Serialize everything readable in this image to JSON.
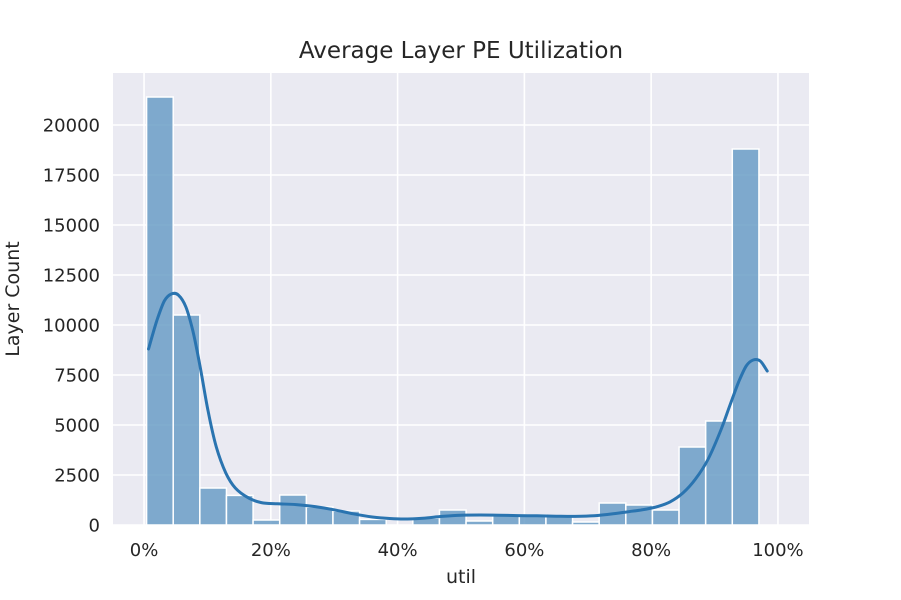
{
  "chart_data": {
    "type": "bar",
    "title": "Average Layer PE Utilization",
    "xlabel": "util",
    "ylabel": "Layer Count",
    "x_tick_values": [
      0,
      20,
      40,
      60,
      80,
      100
    ],
    "x_tick_labels": [
      "0%",
      "20%",
      "40%",
      "60%",
      "80%",
      "100%"
    ],
    "y_tick_values": [
      0,
      2500,
      5000,
      7500,
      10000,
      12500,
      15000,
      17500,
      20000
    ],
    "y_tick_labels": [
      "0",
      "2500",
      "5000",
      "7500",
      "10000",
      "12500",
      "15000",
      "17500",
      "20000"
    ],
    "xlim": [
      -4.9,
      104.9
    ],
    "ylim": [
      0,
      22600
    ],
    "grid": true,
    "bin_width": 4.2,
    "bin_edges_start": 0.4,
    "bins": [
      {
        "x0": 0.4,
        "x1": 4.6,
        "value": 21400
      },
      {
        "x0": 4.6,
        "x1": 8.8,
        "value": 10500
      },
      {
        "x0": 8.8,
        "x1": 13.0,
        "value": 1850
      },
      {
        "x0": 13.0,
        "x1": 17.2,
        "value": 1480
      },
      {
        "x0": 17.2,
        "x1": 21.4,
        "value": 250
      },
      {
        "x0": 21.4,
        "x1": 25.6,
        "value": 1500
      },
      {
        "x0": 25.6,
        "x1": 29.8,
        "value": 900
      },
      {
        "x0": 29.8,
        "x1": 34.0,
        "value": 700
      },
      {
        "x0": 34.0,
        "x1": 38.2,
        "value": 280
      },
      {
        "x0": 38.2,
        "x1": 42.4,
        "value": 0
      },
      {
        "x0": 42.4,
        "x1": 46.6,
        "value": 350
      },
      {
        "x0": 46.6,
        "x1": 50.8,
        "value": 750
      },
      {
        "x0": 50.8,
        "x1": 55.0,
        "value": 200
      },
      {
        "x0": 55.0,
        "x1": 59.2,
        "value": 500
      },
      {
        "x0": 59.2,
        "x1": 63.4,
        "value": 500
      },
      {
        "x0": 63.4,
        "x1": 67.6,
        "value": 450
      },
      {
        "x0": 67.6,
        "x1": 71.8,
        "value": 150
      },
      {
        "x0": 71.8,
        "x1": 76.0,
        "value": 1100
      },
      {
        "x0": 76.0,
        "x1": 80.2,
        "value": 1000
      },
      {
        "x0": 80.2,
        "x1": 84.4,
        "value": 750
      },
      {
        "x0": 84.4,
        "x1": 88.6,
        "value": 3900
      },
      {
        "x0": 88.6,
        "x1": 92.8,
        "value": 5200
      },
      {
        "x0": 92.8,
        "x1": 97.0,
        "value": 18800
      }
    ],
    "kde": {
      "x": [
        0.7,
        2.0,
        3.2,
        4.3,
        5.4,
        6.6,
        7.7,
        8.8,
        10.1,
        11.4,
        12.9,
        14.4,
        16.5,
        18.5,
        21.0,
        24.0,
        27.0,
        30.0,
        33.0,
        36.0,
        38.5,
        41.0,
        44.0,
        47.0,
        50.0,
        53.0,
        56.0,
        59.0,
        62.0,
        65.0,
        68.0,
        71.0,
        74.0,
        77.0,
        79.0,
        81.0,
        83.0,
        85.0,
        87.0,
        89.0,
        91.0,
        92.5,
        93.8,
        95.0,
        96.1,
        97.2,
        98.3
      ],
      "y": [
        8800,
        10200,
        11200,
        11550,
        11500,
        10900,
        9700,
        8000,
        5700,
        3900,
        2600,
        1850,
        1350,
        1120,
        1060,
        1020,
        920,
        760,
        560,
        400,
        330,
        300,
        340,
        430,
        490,
        500,
        490,
        470,
        460,
        440,
        430,
        460,
        560,
        690,
        780,
        920,
        1160,
        1600,
        2300,
        3300,
        4750,
        6050,
        7150,
        7950,
        8250,
        8200,
        7700
      ]
    },
    "colors": {
      "bar_fill": "#6b9ec7",
      "kde_line": "#2a74b0",
      "plot_bg": "#eaeaf2",
      "grid": "#ffffff",
      "text": "#262626"
    }
  }
}
